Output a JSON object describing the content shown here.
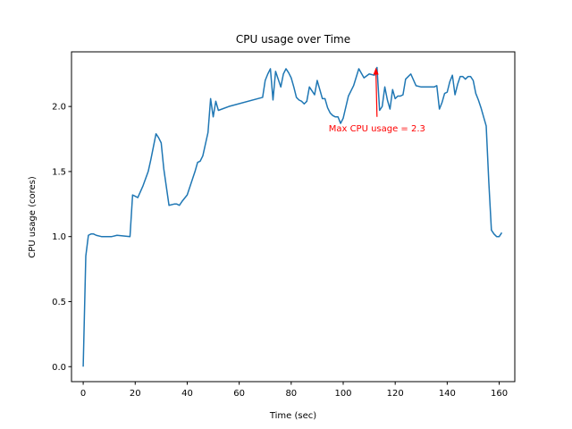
{
  "chart_data": {
    "type": "line",
    "title": "CPU usage over Time",
    "xlabel": "Time (sec)",
    "ylabel": "CPU usage (cores)",
    "xlim": [
      -4.5,
      166
    ],
    "ylim": [
      -0.115,
      2.42
    ],
    "xticks": [
      0,
      20,
      40,
      60,
      80,
      100,
      120,
      140,
      160
    ],
    "xtick_labels": [
      "0",
      "20",
      "40",
      "60",
      "80",
      "100",
      "120",
      "140",
      "160"
    ],
    "yticks": [
      0.0,
      0.5,
      1.0,
      1.5,
      2.0
    ],
    "ytick_labels": [
      "0.0",
      "0.5",
      "1.0",
      "1.5",
      "2.0"
    ],
    "grid": false,
    "series": [
      {
        "color": "#1f77b4",
        "x": [
          0,
          1,
          2,
          3,
          4,
          5,
          7,
          9,
          11,
          13,
          18,
          19,
          20,
          21,
          23,
          25,
          26,
          28,
          29,
          30,
          31,
          32,
          33,
          35,
          36,
          37,
          38,
          40,
          42,
          43,
          44,
          45,
          46,
          48,
          49,
          50,
          51,
          52,
          56,
          69,
          70,
          71,
          72,
          73,
          74,
          75,
          76,
          77,
          78,
          79,
          80,
          81,
          82,
          83,
          84,
          85,
          86,
          87,
          88,
          89,
          90,
          91,
          92,
          93,
          94,
          95,
          96,
          97,
          98,
          99,
          100,
          102,
          103,
          104,
          106,
          108,
          110,
          112,
          113,
          114,
          115,
          116,
          117,
          118,
          119,
          120,
          121,
          122,
          123,
          124,
          125,
          126,
          128,
          130,
          133,
          135,
          136,
          137,
          138,
          139,
          140,
          141,
          142,
          143,
          144,
          145,
          146,
          147,
          148,
          149,
          150,
          151,
          152,
          153,
          154,
          155,
          156,
          157,
          158,
          159,
          160,
          161
        ],
        "y": [
          0.0,
          0.85,
          1.01,
          1.02,
          1.02,
          1.01,
          1.0,
          1.0,
          1.0,
          1.01,
          1.0,
          1.32,
          1.31,
          1.3,
          1.39,
          1.5,
          1.59,
          1.79,
          1.76,
          1.72,
          1.52,
          1.38,
          1.24,
          1.25,
          1.25,
          1.24,
          1.27,
          1.32,
          1.44,
          1.5,
          1.57,
          1.58,
          1.62,
          1.8,
          2.06,
          1.92,
          2.04,
          1.97,
          2.0,
          2.07,
          2.2,
          2.25,
          2.29,
          2.05,
          2.27,
          2.21,
          2.15,
          2.25,
          2.29,
          2.26,
          2.22,
          2.15,
          2.07,
          2.05,
          2.04,
          2.02,
          2.04,
          2.15,
          2.12,
          2.09,
          2.2,
          2.13,
          2.06,
          2.06,
          1.99,
          1.95,
          1.93,
          1.92,
          1.92,
          1.87,
          1.91,
          2.08,
          2.12,
          2.16,
          2.29,
          2.22,
          2.25,
          2.24,
          2.3,
          1.97,
          2.0,
          2.15,
          2.05,
          1.98,
          2.13,
          2.06,
          2.08,
          2.08,
          2.09,
          2.21,
          2.23,
          2.25,
          2.16,
          2.15,
          2.15,
          2.15,
          2.16,
          1.98,
          2.03,
          2.1,
          2.11,
          2.19,
          2.24,
          2.09,
          2.17,
          2.23,
          2.23,
          2.21,
          2.23,
          2.23,
          2.2,
          2.1,
          2.05,
          1.99,
          1.92,
          1.85,
          1.42,
          1.05,
          1.02,
          1.0,
          1.0,
          1.03
        ]
      }
    ],
    "annotation": {
      "text": "Max CPU usage = 2.3",
      "color": "#ff0000",
      "arrow_from": [
        113,
        1.92
      ],
      "arrow_to": [
        112.6,
        2.3
      ]
    }
  }
}
